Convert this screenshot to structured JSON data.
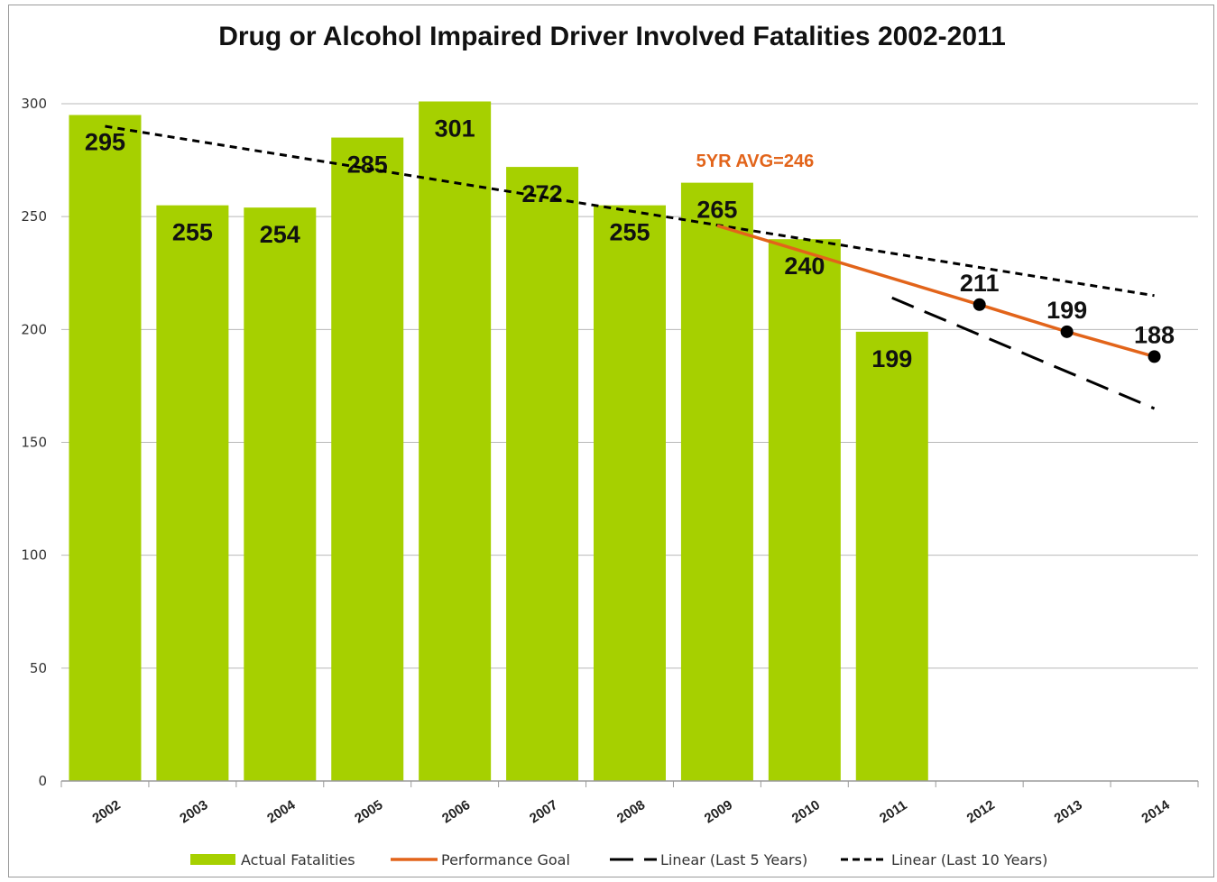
{
  "chart_data": {
    "type": "bar",
    "title": "Drug or Alcohol Impaired Driver Involved Fatalities 2002-2011",
    "categories": [
      "2002",
      "2003",
      "2004",
      "2005",
      "2006",
      "2007",
      "2008",
      "2009",
      "2010",
      "2011",
      "2012",
      "2013",
      "2014"
    ],
    "ylim": [
      0,
      300
    ],
    "yticks": [
      "0",
      "50",
      "100",
      "150",
      "200",
      "250",
      "300"
    ],
    "grid": true,
    "legend_position": "bottom",
    "series": [
      {
        "name": "Actual Fatalities",
        "type": "bar",
        "color": "#a6d000",
        "values": [
          295,
          255,
          254,
          285,
          301,
          272,
          255,
          265,
          240,
          199,
          null,
          null,
          null
        ],
        "labels": [
          "295",
          "255",
          "254",
          "285",
          "301",
          "272",
          "255",
          "265",
          "240",
          "199",
          "",
          "",
          ""
        ]
      },
      {
        "name": "Performance Goal",
        "type": "line",
        "color": "#e2641a",
        "x": [
          "2009",
          "2012",
          "2013",
          "2014"
        ],
        "values": [
          246,
          211,
          199,
          188
        ],
        "marker_labels": [
          "211",
          "199",
          "188"
        ]
      },
      {
        "name": "Linear (Last 5 Years)",
        "type": "line",
        "style": "long-dash",
        "color": "#000000",
        "x": [
          "2011",
          "2014"
        ],
        "values": [
          214,
          165
        ]
      },
      {
        "name": "Linear (Last 10 Years)",
        "type": "line",
        "style": "short-dash",
        "color": "#000000",
        "x": [
          "2002",
          "2014"
        ],
        "values": [
          290,
          215
        ]
      }
    ],
    "annotations": [
      {
        "text": "5YR AVG=246",
        "color": "#e2641a"
      }
    ]
  }
}
